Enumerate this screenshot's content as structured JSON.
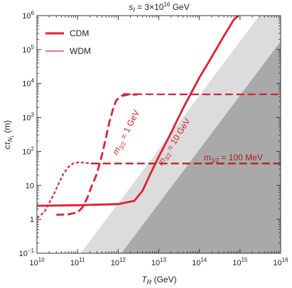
{
  "chart_data": {
    "type": "line",
    "title_parts": {
      "var": "s",
      "sub": "I",
      "eq": " = 3×10",
      "exp": "16",
      "unit": " GeV"
    },
    "xlabel_parts": {
      "var": "T",
      "sub": "R",
      "unit": " (GeV)"
    },
    "ylabel_parts": {
      "pre": "c",
      "var": "τ",
      "sub": "N",
      "subsub": "1",
      "unit": " (m)"
    },
    "xscale": "log",
    "yscale": "log",
    "xlim": [
      10000000000.0,
      1e+16
    ],
    "ylim": [
      0.1,
      1000000.0
    ],
    "x_ticks": [
      {
        "value": 10000000000.0,
        "base": "10",
        "exp": "10"
      },
      {
        "value": 100000000000.0,
        "base": "10",
        "exp": "11"
      },
      {
        "value": 1000000000000.0,
        "base": "10",
        "exp": "12"
      },
      {
        "value": 10000000000000.0,
        "base": "10",
        "exp": "13"
      },
      {
        "value": 100000000000000.0,
        "base": "10",
        "exp": "14"
      },
      {
        "value": 1000000000000000.0,
        "base": "10",
        "exp": "15"
      },
      {
        "value": 1e+16,
        "base": "10",
        "exp": "16"
      }
    ],
    "y_ticks": [
      {
        "value": 0.1,
        "base": "10",
        "exp": "−1"
      },
      {
        "value": 1,
        "base": "1",
        "exp": ""
      },
      {
        "value": 10,
        "base": "10",
        "exp": ""
      },
      {
        "value": 100,
        "base": "10",
        "exp": "2"
      },
      {
        "value": 1000,
        "base": "10",
        "exp": "3"
      },
      {
        "value": 10000,
        "base": "10",
        "exp": "4"
      },
      {
        "value": 100000,
        "base": "10",
        "exp": "5"
      },
      {
        "value": 1000000,
        "base": "10",
        "exp": "6"
      }
    ],
    "grid": false,
    "legend": {
      "position": "top-left",
      "entries": [
        {
          "label": "CDM",
          "style": "thick"
        },
        {
          "label": "WDM",
          "style": "thin"
        }
      ]
    },
    "excluded_regions": [
      {
        "shade": "light",
        "boundary": [
          [
            120000000000.0,
            0.1
          ],
          [
            3000000000000000.0,
            1000000.0
          ]
        ]
      },
      {
        "shade": "dark",
        "boundary": [
          [
            1200000000000.0,
            0.1
          ],
          [
            3e+16,
            1000000.0
          ]
        ]
      }
    ],
    "series": [
      {
        "mass_label": {
          "sym": "m",
          "sub": "3/2",
          "eq": " = 1 GeV"
        },
        "color": "#e02030",
        "cdm": [
          [
            30000000000.0,
            1.35
          ],
          [
            60000000000.0,
            1.4
          ],
          [
            100000000000.0,
            1.6
          ],
          [
            130000000000.0,
            2.2
          ],
          [
            170000000000.0,
            4
          ],
          [
            220000000000.0,
            9
          ],
          [
            300000000000.0,
            22
          ],
          [
            400000000000.0,
            80
          ],
          [
            500000000000.0,
            250
          ],
          [
            600000000000.0,
            700
          ],
          [
            750000000000.0,
            1800
          ],
          [
            900000000000.0,
            3200
          ],
          [
            1200000000000.0,
            4300
          ],
          [
            1800000000000.0,
            4700
          ],
          [
            3000000000000.0,
            4700
          ]
        ],
        "wdm": [
          [
            10000000000.0,
            1.1
          ],
          [
            15000000000.0,
            1.6
          ],
          [
            20000000000.0,
            3
          ],
          [
            27000000000.0,
            6
          ],
          [
            35000000000.0,
            12
          ],
          [
            45000000000.0,
            22
          ],
          [
            60000000000.0,
            35
          ],
          [
            80000000000.0,
            45
          ],
          [
            110000000000.0,
            48
          ],
          [
            160000000000.0,
            46
          ],
          [
            220000000000.0,
            44
          ]
        ]
      },
      {
        "mass_label": {
          "sym": "m",
          "sub": "3/2",
          "eq": " = 10 GeV"
        },
        "color": "#e02030",
        "cdm": [
          [
            10000000000.0,
            2.5
          ],
          [
            100000000000.0,
            2.6
          ],
          [
            1000000000000.0,
            2.8
          ],
          [
            2500000000000.0,
            3.5
          ],
          [
            4000000000000.0,
            7
          ],
          [
            6000000000000.0,
            20
          ],
          [
            10000000000000.0,
            70
          ],
          [
            20000000000000.0,
            350
          ],
          [
            40000000000000.0,
            1900
          ],
          [
            100000000000000.0,
            15000
          ],
          [
            200000000000000.0,
            60000
          ],
          [
            400000000000000.0,
            250000
          ],
          [
            700000000000000.0,
            750000
          ],
          [
            900000000000000.0,
            1000000.0
          ]
        ],
        "wdm": [
          [
            1300000000000.0,
            4900
          ],
          [
            10000000000000.0,
            4800
          ],
          [
            100000000000000.0,
            4800
          ],
          [
            1000000000000000.0,
            4800
          ],
          [
            1e+16,
            4800
          ]
        ]
      },
      {
        "mass_label": {
          "sym": "m",
          "sub": "3/2",
          "eq": " = 100 MeV"
        },
        "color": "#b51822",
        "cdm": [],
        "wdm": [
          [
            220000000000.0,
            44
          ],
          [
            1000000000000.0,
            44
          ],
          [
            10000000000000.0,
            44
          ],
          [
            100000000000000.0,
            44
          ],
          [
            1000000000000000.0,
            44
          ],
          [
            1e+16,
            44
          ]
        ]
      }
    ]
  }
}
